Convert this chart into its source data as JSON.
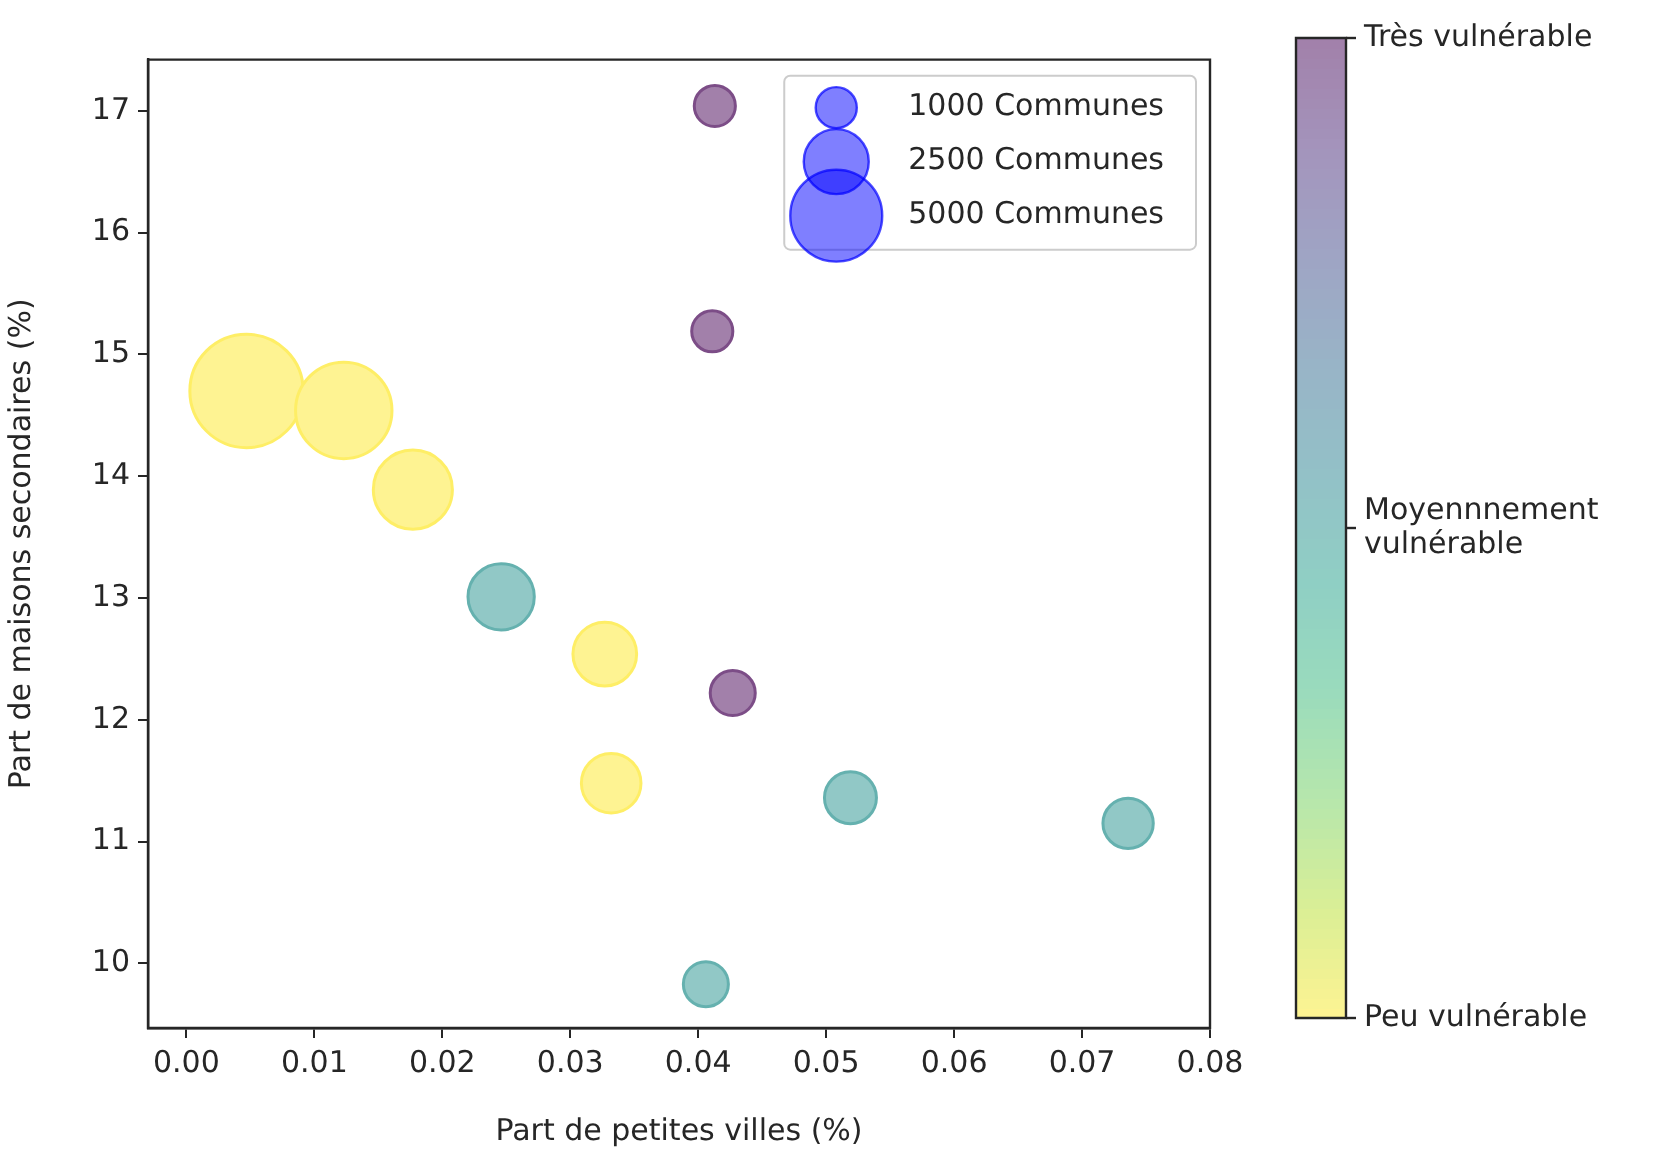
{
  "chart_data": {
    "type": "bubble",
    "xlabel": "Part de petites villes (%)",
    "ylabel": "Part de maisons secondaires (%)",
    "x": [
      0.0413,
      0.0411,
      0.0047,
      0.0123,
      0.0177,
      0.0246,
      0.0327,
      0.0427,
      0.0332,
      0.0519,
      0.0736,
      0.0406
    ],
    "values": [
      17.04,
      15.19,
      14.7,
      14.54,
      13.89,
      13.01,
      12.54,
      12.22,
      11.48,
      11.36,
      11.15,
      9.83
    ],
    "sizes": [
      1000,
      1000,
      7600,
      5500,
      3700,
      2600,
      2400,
      1200,
      2100,
      1600,
      1500,
      1200
    ],
    "cvalues": [
      2,
      2,
      0,
      0,
      0,
      1,
      0,
      2,
      0,
      1,
      1,
      1
    ],
    "size_legend": [
      {
        "value": 1000,
        "label": "1000 Communes"
      },
      {
        "value": 2500,
        "label": "2500 Communes"
      },
      {
        "value": 5000,
        "label": "5000 Communes"
      }
    ],
    "clim": [
      0,
      2
    ],
    "cticks": [
      {
        "value": 0,
        "label": "Peu vulnérable"
      },
      {
        "value": 1,
        "label": "Moyennnement\nvulnérable"
      },
      {
        "value": 2,
        "label": "Très vulnérable"
      }
    ],
    "xlim": [
      -0.003,
      0.08
    ],
    "xticks": [
      {
        "value": 0,
        "label": "0.00"
      },
      {
        "value": 0.01,
        "label": "0.01"
      },
      {
        "value": 0.02,
        "label": "0.02"
      },
      {
        "value": 0.03,
        "label": "0.03"
      },
      {
        "value": 0.04,
        "label": "0.04"
      },
      {
        "value": 0.05,
        "label": "0.05"
      },
      {
        "value": 0.06,
        "label": "0.06"
      },
      {
        "value": 0.07,
        "label": "0.07"
      },
      {
        "value": 0.08,
        "label": "0.08"
      }
    ],
    "ylim": [
      9.47,
      17.42
    ],
    "yticks": [
      10,
      11,
      12,
      13,
      14,
      15,
      16,
      17
    ],
    "grid": false
  }
}
